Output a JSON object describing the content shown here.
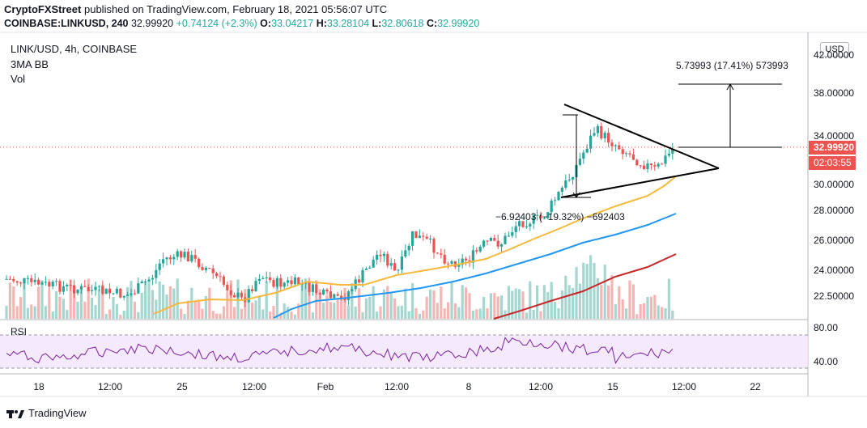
{
  "header": {
    "publisher": "CryptoFXStreet",
    "published_text": "published on TradingView.com, February 18, 2021 05:56:07 UTC",
    "symbol_full": "COINBASE:LINKUSD, 240",
    "last": "32.99920",
    "change": "+0.74124 (+2.3%)",
    "o_label": "O:",
    "o": "33.04217",
    "h_label": "H:",
    "h": "33.28104",
    "l_label": "L:",
    "l": "32.80618",
    "c_label": "C:",
    "c": "32.99920"
  },
  "legend": {
    "title": "LINK/USD, 4h, COINBASE",
    "ma": "3MA BB",
    "vol": "Vol",
    "rsi": "RSI"
  },
  "price_axis": {
    "currency": "USD",
    "ticks": [
      "42.00000",
      "38.00000",
      "34.00000",
      "30.00000",
      "28.00000",
      "26.00000",
      "24.00000",
      "22.50000"
    ],
    "current_price": "32.99920",
    "countdown": "02:03:55"
  },
  "rsi_axis": {
    "ticks": [
      "80.00",
      "40.00"
    ]
  },
  "time_axis": {
    "ticks": [
      "18",
      "12:00",
      "25",
      "12:00",
      "Feb",
      "12:00",
      "8",
      "12:00",
      "15",
      "12:00",
      "22"
    ]
  },
  "annotations": {
    "target": "5.73993 (17.41%) 573993",
    "pole": "−6.92403 (−19.32%) −692403"
  },
  "branding": {
    "name": "TradingView"
  },
  "colors": {
    "up": "#26a69a",
    "down": "#ef5350",
    "ma_short": "#f6b93b",
    "ma_mid": "#2196f3",
    "ma_long": "#c62828",
    "rsi": "#7b1fa2",
    "price_tag": "#ef5350"
  }
}
